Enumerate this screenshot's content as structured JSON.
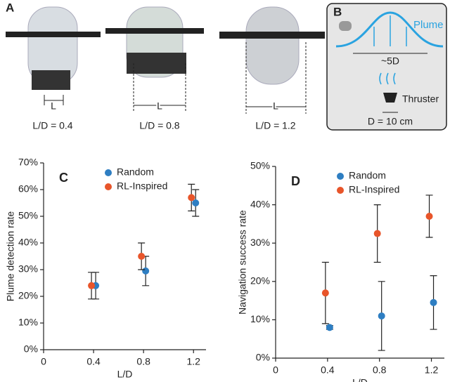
{
  "panel_a": {
    "label": "A",
    "photos": [
      {
        "caption": "L/D = 0.4",
        "dimension": "L"
      },
      {
        "caption": "L/D = 0.8",
        "dimension": "L"
      },
      {
        "caption": "L/D = 1.2",
        "dimension": "L"
      }
    ]
  },
  "panel_b": {
    "label": "B",
    "plume": "Plume",
    "spread": "~5D",
    "thruster": "Thruster",
    "diameter": "D = 10 cm"
  },
  "chart_data": [
    {
      "type": "scatter",
      "title": "C",
      "x_label": "L/D",
      "y_label": "Plume detection rate",
      "x": [
        0.4,
        0.8,
        1.2
      ],
      "xlim": [
        0,
        1.3
      ],
      "xticks": [
        0,
        0.4,
        0.8,
        1.2
      ],
      "ylim": [
        0,
        70
      ],
      "yticks": [
        {
          "value": 0,
          "label": "0%"
        },
        {
          "value": 10,
          "label": "10%"
        },
        {
          "value": 20,
          "label": "20%"
        },
        {
          "value": 30,
          "label": "30%"
        },
        {
          "value": 40,
          "label": "40%"
        },
        {
          "value": 50,
          "label": "50%"
        },
        {
          "value": 60,
          "label": "60%"
        },
        {
          "value": 70,
          "label": "70%"
        }
      ],
      "series": [
        {
          "name": "Random",
          "color": "#2e7ec2",
          "values": [
            24,
            29.5,
            55
          ],
          "errors": [
            5,
            5.5,
            5
          ]
        },
        {
          "name": "RL-Inspired",
          "color": "#e8552a",
          "values": [
            24,
            35,
            57
          ],
          "errors": [
            5,
            5,
            5
          ]
        }
      ]
    },
    {
      "type": "scatter",
      "title": "D",
      "x_label": "L/D",
      "y_label": "Navigation success rate",
      "x": [
        0.4,
        0.8,
        1.2
      ],
      "xlim": [
        0,
        1.3
      ],
      "xticks": [
        0,
        0.4,
        0.8,
        1.2
      ],
      "ylim": [
        0,
        50
      ],
      "yticks": [
        {
          "value": 0,
          "label": "0%"
        },
        {
          "value": 10,
          "label": "10%"
        },
        {
          "value": 20,
          "label": "20%"
        },
        {
          "value": 30,
          "label": "30%"
        },
        {
          "value": 40,
          "label": "40%"
        },
        {
          "value": 50,
          "label": "50%"
        }
      ],
      "series": [
        {
          "name": "Random",
          "color": "#2e7ec2",
          "values": [
            8,
            11,
            14.5
          ],
          "errors": [
            0.5,
            9,
            7
          ]
        },
        {
          "name": "RL-Inspired",
          "color": "#e8552a",
          "values": [
            17,
            32.5,
            37
          ],
          "errors": [
            8,
            7.5,
            5.5
          ]
        }
      ]
    }
  ]
}
